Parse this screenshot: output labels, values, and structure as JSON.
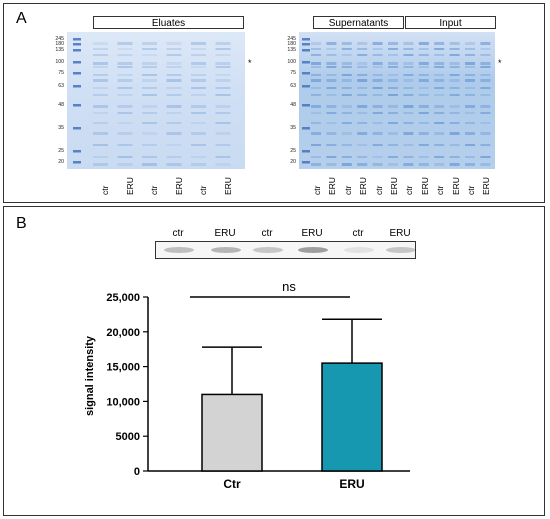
{
  "panel_a": {
    "letter": "A",
    "left_gel": {
      "group_label": "Eluates",
      "mw_markers": [
        "245",
        "180",
        "135",
        "100",
        "75",
        "63",
        "48",
        "35",
        "25",
        "20"
      ],
      "lanes": [
        "ctr",
        "ERU",
        "ctr",
        "ERU",
        "ctr",
        "ERU"
      ],
      "asterisk": "*"
    },
    "right_gel": {
      "group_labels": [
        "Supernatants",
        "Input"
      ],
      "mw_markers": [
        "245",
        "180",
        "135",
        "100",
        "75",
        "63",
        "48",
        "35",
        "25",
        "20"
      ],
      "lanes": [
        "ctr",
        "ERU",
        "ctr",
        "ERU",
        "ctr",
        "ERU",
        "ctr",
        "ERU",
        "ctr",
        "ERU",
        "ctr",
        "ERU"
      ],
      "asterisk": "*"
    }
  },
  "panel_b": {
    "letter": "B",
    "blot_labels": [
      "ctr",
      "ERU",
      "ctr",
      "ERU",
      "ctr",
      "ERU"
    ]
  },
  "chart_data": {
    "type": "bar",
    "categories": [
      "Ctr",
      "ERU"
    ],
    "values": [
      11000,
      15500
    ],
    "errors": [
      6800,
      6300
    ],
    "colors": [
      "#d3d3d3",
      "#1598b0"
    ],
    "ylabel": "signal intensity",
    "ylim": [
      0,
      25000
    ],
    "yticks": [
      0,
      5000,
      10000,
      15000,
      20000,
      25000
    ],
    "ytick_labels": [
      "0",
      "5000",
      "10,000",
      "15,000",
      "20,000",
      "25,000"
    ],
    "significance": "ns"
  }
}
